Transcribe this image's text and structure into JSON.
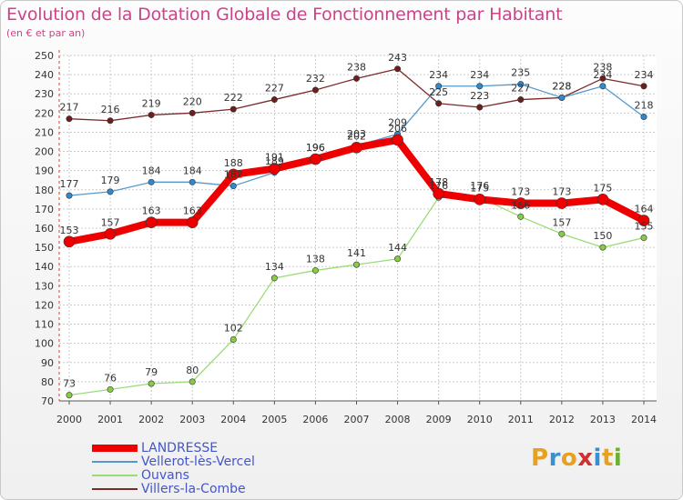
{
  "header": {
    "title": "Evolution de la Dotation Globale de Fonctionnement par Habitant",
    "subtitle": "(en € et par an)"
  },
  "brand": {
    "letters": [
      "P",
      "r",
      "o",
      "x",
      "i",
      "t",
      "i"
    ],
    "colors": [
      "#e8a020",
      "#3a8fd0",
      "#e8a020",
      "#d03030",
      "#3a8fd0",
      "#e8a020",
      "#6ab030"
    ]
  },
  "chart_data": {
    "type": "line",
    "title": "Evolution de la Dotation Globale de Fonctionnement par Habitant",
    "subtitle": "(en € et par an)",
    "xlabel": "",
    "ylabel": "",
    "ylim": [
      70,
      250
    ],
    "yticks": [
      70,
      80,
      90,
      100,
      110,
      120,
      130,
      140,
      150,
      160,
      170,
      180,
      190,
      200,
      210,
      220,
      230,
      240,
      250
    ],
    "grid": true,
    "legend_position": "bottom-left",
    "x": [
      "2000",
      "2001",
      "2002",
      "2003",
      "2004",
      "2005",
      "2006",
      "2007",
      "2008",
      "2009",
      "2010",
      "2011",
      "2012",
      "2013",
      "2014"
    ],
    "series": [
      {
        "name": "Villers-la-Combe",
        "color": "#7b2a2a",
        "values": [
          217,
          216,
          219,
          220,
          222,
          227,
          232,
          238,
          243,
          225,
          223,
          227,
          228,
          238,
          234
        ],
        "labels": [
          "217",
          "216",
          "219",
          "220",
          "222",
          "227",
          "232",
          "238",
          "243",
          "225",
          "223",
          "227",
          "228",
          "238",
          "234"
        ]
      },
      {
        "name": "Ouvans",
        "color": "#99dd77",
        "values": [
          73,
          76,
          79,
          80,
          102,
          134,
          138,
          141,
          144,
          176,
          176,
          166,
          157,
          150,
          155
        ],
        "labels": [
          "73",
          "76",
          "79",
          "80",
          "102",
          "134",
          "138",
          "141",
          "144",
          "176",
          "176",
          "166",
          "157",
          "150",
          "155"
        ]
      },
      {
        "name": "Vellerot-lès-Vercel",
        "color": "#5599cc",
        "values": [
          177,
          179,
          184,
          184,
          182,
          189,
          196,
          203,
          209,
          234,
          234,
          235,
          228,
          234,
          218
        ],
        "labels": [
          "177",
          "179",
          "184",
          "184",
          "182",
          "189",
          "196",
          "203",
          "209",
          "234",
          "234",
          "235",
          "228",
          "234",
          "218"
        ]
      },
      {
        "name": "LANDRESSE",
        "color": "#ee0000",
        "values": [
          153,
          157,
          163,
          163,
          188,
          191,
          196,
          202,
          206,
          178,
          175,
          173,
          173,
          175,
          164
        ],
        "labels": [
          "153",
          "157",
          "163",
          "163",
          "188",
          "191",
          "196",
          "202",
          "206",
          "178",
          "175",
          "173",
          "173",
          "175",
          "164"
        ]
      }
    ],
    "legend": [
      "LANDRESSE",
      "Vellerot-lès-Vercel",
      "Ouvans",
      "Villers-la-Combe"
    ]
  }
}
